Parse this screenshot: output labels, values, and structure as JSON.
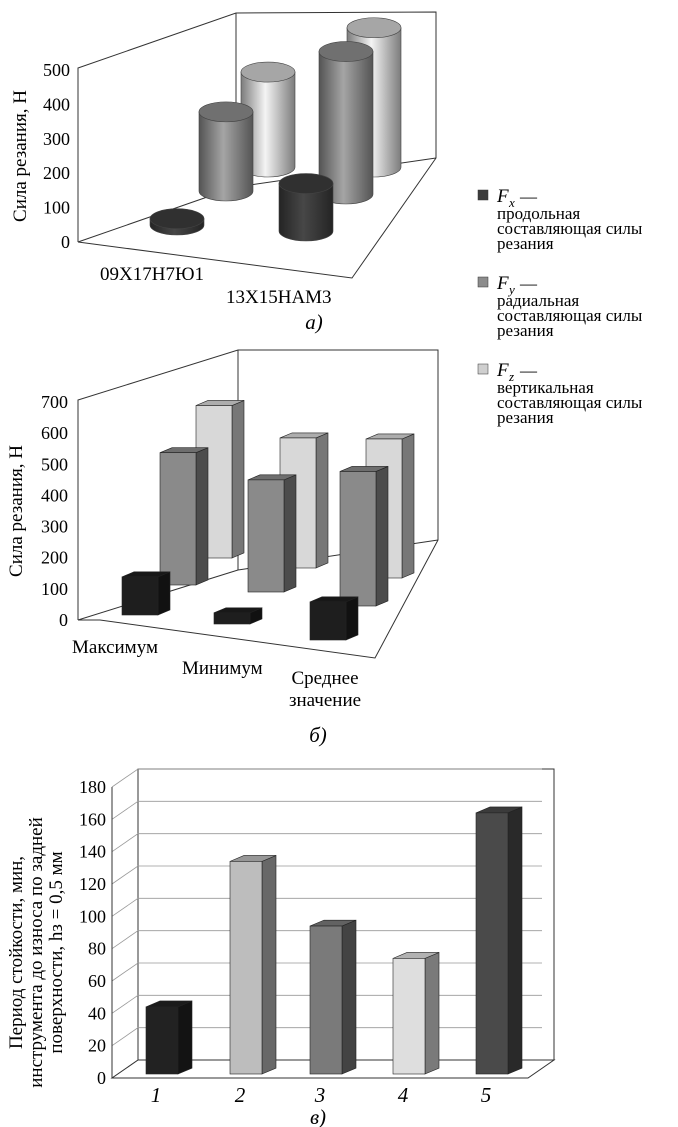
{
  "chart_data": [
    {
      "id": "a",
      "type": "bar",
      "style": "3d-cylinder",
      "caption": "а)",
      "ylabel": "Сила резания, Н",
      "ylim": [
        0,
        500
      ],
      "yticks": [
        0,
        100,
        200,
        300,
        400,
        500
      ],
      "categories": [
        "09Х17Н7Ю1",
        "13Х15НАМ3"
      ],
      "series": [
        {
          "name": "F_x",
          "color": "#3c3c3c",
          "values": [
            20,
            150
          ]
        },
        {
          "name": "F_y",
          "color": "#8c8c8c",
          "values": [
            250,
            450
          ]
        },
        {
          "name": "F_z",
          "color": "#cfcfcf",
          "values": [
            300,
            440
          ]
        }
      ]
    },
    {
      "id": "b",
      "type": "bar",
      "style": "3d-box",
      "caption": "б)",
      "ylabel": "Сила резания, Н",
      "ylim": [
        0,
        700
      ],
      "yticks": [
        0,
        100,
        200,
        300,
        400,
        500,
        600,
        700
      ],
      "categories": [
        "Максимум",
        "Минимум",
        "Среднее значение"
      ],
      "series": [
        {
          "name": "F_x",
          "color": "#1e1e1e",
          "values": [
            170,
            50,
            170
          ]
        },
        {
          "name": "F_y",
          "color": "#8a8a8a",
          "values": [
            590,
            500,
            600
          ]
        },
        {
          "name": "F_z",
          "color": "#d8d8d8",
          "values": [
            680,
            580,
            620
          ]
        }
      ]
    },
    {
      "id": "v",
      "type": "bar",
      "style": "3d-box",
      "caption": "в)",
      "ylabel": [
        "Период стойкости, мин,",
        "инструмента до износа по задней",
        "поверхности, hз = 0,5 мм"
      ],
      "ylim": [
        0,
        180
      ],
      "yticks": [
        0,
        20,
        40,
        60,
        80,
        100,
        120,
        140,
        160,
        180
      ],
      "grid": true,
      "categories": [
        "1",
        "2",
        "3",
        "4",
        "5"
      ],
      "values": [
        44,
        134,
        94,
        74,
        164
      ],
      "colors": [
        "#222222",
        "#bdbdbd",
        "#7a7a7a",
        "#dedede",
        "#4a4a4a"
      ]
    }
  ],
  "legend": {
    "placement": "right",
    "items": [
      {
        "symbol": "F",
        "sub": "x",
        "dash": "—",
        "text": [
          "продольная",
          "составляющая силы",
          "резания"
        ],
        "color": "#3c3c3c"
      },
      {
        "symbol": "F",
        "sub": "y",
        "dash": "—",
        "text": [
          "радиальная",
          "составляющая силы",
          "резания"
        ],
        "color": "#8c8c8c"
      },
      {
        "symbol": "F",
        "sub": "z",
        "dash": "—",
        "text": [
          "вертикальная",
          "составляющая силы",
          "резания"
        ],
        "color": "#cfcfcf"
      }
    ]
  }
}
